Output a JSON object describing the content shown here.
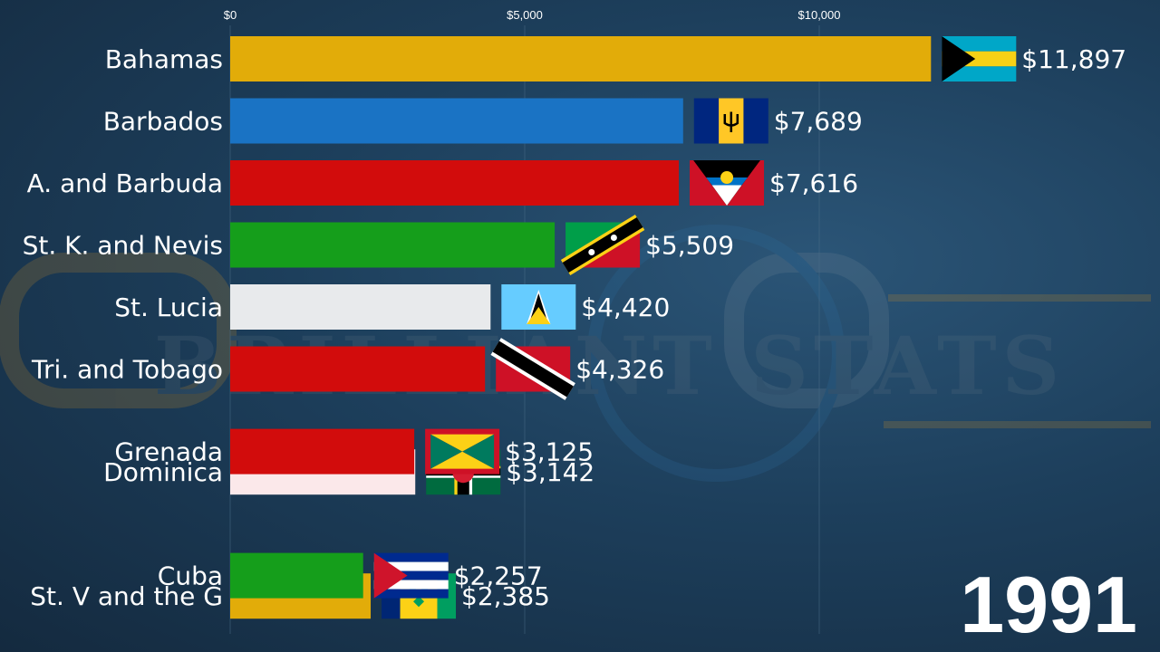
{
  "chart_data": {
    "type": "bar",
    "orientation": "horizontal",
    "title": "",
    "year_label": "1991",
    "x_ticks": [
      {
        "value": 0,
        "label": "$0"
      },
      {
        "value": 5000,
        "label": "$5,000"
      },
      {
        "value": 10000,
        "label": "$10,000"
      }
    ],
    "xlim": [
      0,
      12000
    ],
    "grid": true,
    "bars": [
      {
        "country": "Bahamas",
        "value": 11897,
        "label": "$11,897",
        "color": "#e2ac09",
        "flag": "bahamas-flag",
        "rank_slot": 0
      },
      {
        "country": "Barbados",
        "value": 7689,
        "label": "$7,689",
        "color": "#1a73c4",
        "flag": "barbados-flag",
        "rank_slot": 1
      },
      {
        "country": "A. and Barbuda",
        "value": 7616,
        "label": "$7,616",
        "color": "#d20c0c",
        "flag": "antigua-flag",
        "rank_slot": 2
      },
      {
        "country": "St. K. and Nevis",
        "value": 5509,
        "label": "$5,509",
        "color": "#159e1b",
        "flag": "stkitts-flag",
        "rank_slot": 3
      },
      {
        "country": "St. Lucia",
        "value": 4420,
        "label": "$4,420",
        "color": "#e8eaec",
        "flag": "stlucia-flag",
        "rank_slot": 4
      },
      {
        "country": "Tri. and Tobago",
        "value": 4326,
        "label": "$4,326",
        "color": "#d20c0c",
        "flag": "trinidad-flag",
        "rank_slot": 5
      },
      {
        "country": "Dominica",
        "value": 3142,
        "label": "$3,142",
        "color": "#fbe8ea",
        "flag": "dominica-flag",
        "rank_slot": 6.66
      },
      {
        "country": "Grenada",
        "value": 3125,
        "label": "$3,125",
        "color": "#d20c0c",
        "flag": "grenada-flag",
        "rank_slot": 6.33
      },
      {
        "country": "St. V and the G",
        "value": 2385,
        "label": "$2,385",
        "color": "#e2ac09",
        "flag": "stvincent-flag",
        "rank_slot": 8.66
      },
      {
        "country": "Cuba",
        "value": 2257,
        "label": "$2,257",
        "color": "#159e1b",
        "flag": "cuba-flag",
        "rank_slot": 8.33
      }
    ]
  },
  "watermark": {
    "text": "BRILLIANT STATS"
  }
}
